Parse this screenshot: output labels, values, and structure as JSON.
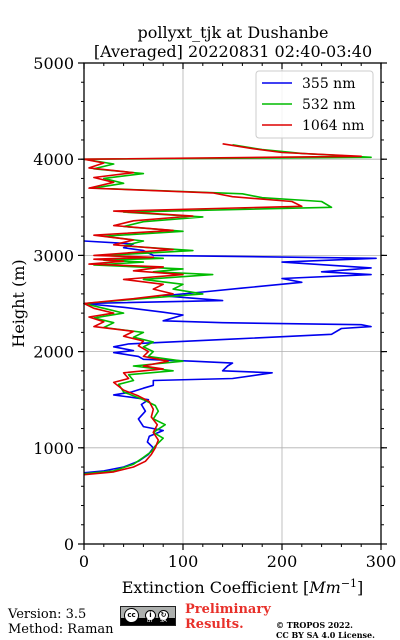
{
  "chart_data": {
    "type": "line",
    "title": "pollyxt_tjk at Dushanbe",
    "subtitle": "[Averaged] 20220831 02:40-03:40",
    "xlabel": "Extinction Coefficient",
    "xlabel_unit": "[Mm^-1]",
    "ylabel": "Height (m)",
    "xlim": [
      0,
      300
    ],
    "ylim": [
      0,
      5000
    ],
    "x_ticks": [
      "0",
      "100",
      "200",
      "300"
    ],
    "y_ticks": [
      "0",
      "1000",
      "2000",
      "3000",
      "4000",
      "5000"
    ],
    "grid": true,
    "legend_position": "top-right",
    "series": [
      {
        "name": "355 nm",
        "color": "#0000ee",
        "points": [
          [
            0,
            740
          ],
          [
            20,
            760
          ],
          [
            40,
            800
          ],
          [
            55,
            860
          ],
          [
            65,
            930
          ],
          [
            70,
            1000
          ],
          [
            64,
            1060
          ],
          [
            66,
            1120
          ],
          [
            80,
            1180
          ],
          [
            60,
            1220
          ],
          [
            55,
            1300
          ],
          [
            62,
            1380
          ],
          [
            58,
            1450
          ],
          [
            65,
            1500
          ],
          [
            30,
            1550
          ],
          [
            48,
            1580
          ],
          [
            60,
            1620
          ],
          [
            70,
            1650
          ],
          [
            70,
            1700
          ],
          [
            150,
            1720
          ],
          [
            190,
            1780
          ],
          [
            140,
            1800
          ],
          [
            145,
            1850
          ],
          [
            150,
            1880
          ],
          [
            110,
            1900
          ],
          [
            60,
            1920
          ],
          [
            55,
            1950
          ],
          [
            30,
            1990
          ],
          [
            50,
            2010
          ],
          [
            30,
            2050
          ],
          [
            45,
            2080
          ],
          [
            150,
            2130
          ],
          [
            250,
            2180
          ],
          [
            260,
            2240
          ],
          [
            290,
            2260
          ],
          [
            280,
            2280
          ],
          [
            140,
            2300
          ],
          [
            80,
            2320
          ],
          [
            100,
            2380
          ],
          [
            80,
            2410
          ],
          [
            40,
            2460
          ],
          [
            0,
            2500
          ],
          [
            140,
            2530
          ],
          [
            80,
            2580
          ],
          [
            120,
            2620
          ],
          [
            160,
            2660
          ],
          [
            220,
            2720
          ],
          [
            200,
            2760
          ],
          [
            290,
            2800
          ],
          [
            240,
            2830
          ],
          [
            290,
            2870
          ],
          [
            200,
            2930
          ],
          [
            295,
            2970
          ],
          [
            70,
            3000
          ],
          [
            60,
            3050
          ],
          [
            40,
            3080
          ],
          [
            50,
            3120
          ],
          [
            0,
            3150
          ]
        ]
      },
      {
        "name": "532 nm",
        "color": "#00bb00",
        "points": [
          [
            0,
            730
          ],
          [
            30,
            760
          ],
          [
            50,
            830
          ],
          [
            60,
            900
          ],
          [
            68,
            960
          ],
          [
            72,
            1020
          ],
          [
            80,
            1100
          ],
          [
            70,
            1160
          ],
          [
            82,
            1240
          ],
          [
            70,
            1300
          ],
          [
            75,
            1380
          ],
          [
            72,
            1440
          ],
          [
            60,
            1500
          ],
          [
            40,
            1580
          ],
          [
            35,
            1660
          ],
          [
            50,
            1700
          ],
          [
            45,
            1760
          ],
          [
            90,
            1800
          ],
          [
            50,
            1850
          ],
          [
            100,
            1900
          ],
          [
            65,
            1950
          ],
          [
            70,
            2000
          ],
          [
            60,
            2050
          ],
          [
            70,
            2100
          ],
          [
            50,
            2150
          ],
          [
            60,
            2200
          ],
          [
            20,
            2250
          ],
          [
            30,
            2300
          ],
          [
            10,
            2350
          ],
          [
            40,
            2400
          ],
          [
            20,
            2450
          ],
          [
            0,
            2500
          ],
          [
            70,
            2560
          ],
          [
            120,
            2600
          ],
          [
            90,
            2650
          ],
          [
            100,
            2700
          ],
          [
            60,
            2750
          ],
          [
            130,
            2800
          ],
          [
            70,
            2830
          ],
          [
            100,
            2860
          ],
          [
            10,
            2900
          ],
          [
            60,
            2930
          ],
          [
            20,
            2950
          ],
          [
            80,
            2970
          ],
          [
            20,
            3000
          ],
          [
            110,
            3050
          ],
          [
            40,
            3100
          ],
          [
            60,
            3150
          ],
          [
            20,
            3200
          ],
          [
            100,
            3250
          ],
          [
            40,
            3300
          ],
          [
            60,
            3350
          ],
          [
            120,
            3400
          ],
          [
            40,
            3450
          ],
          [
            250,
            3500
          ],
          [
            240,
            3560
          ],
          [
            180,
            3600
          ],
          [
            160,
            3640
          ],
          [
            10,
            3700
          ],
          [
            40,
            3750
          ],
          [
            20,
            3800
          ],
          [
            60,
            3850
          ],
          [
            10,
            3900
          ],
          [
            30,
            3950
          ],
          [
            0,
            4000
          ],
          [
            290,
            4020
          ],
          [
            220,
            4060
          ],
          [
            180,
            4100
          ],
          [
            150,
            4150
          ]
        ]
      },
      {
        "name": "1064 nm",
        "color": "#dd0000",
        "points": [
          [
            0,
            720
          ],
          [
            30,
            750
          ],
          [
            50,
            800
          ],
          [
            62,
            860
          ],
          [
            68,
            930
          ],
          [
            72,
            1000
          ],
          [
            75,
            1080
          ],
          [
            70,
            1160
          ],
          [
            74,
            1240
          ],
          [
            68,
            1320
          ],
          [
            70,
            1400
          ],
          [
            66,
            1480
          ],
          [
            55,
            1540
          ],
          [
            40,
            1600
          ],
          [
            30,
            1680
          ],
          [
            45,
            1720
          ],
          [
            40,
            1780
          ],
          [
            80,
            1820
          ],
          [
            60,
            1850
          ],
          [
            85,
            1900
          ],
          [
            60,
            1950
          ],
          [
            65,
            2000
          ],
          [
            55,
            2060
          ],
          [
            60,
            2110
          ],
          [
            40,
            2160
          ],
          [
            50,
            2210
          ],
          [
            10,
            2260
          ],
          [
            20,
            2310
          ],
          [
            5,
            2360
          ],
          [
            30,
            2400
          ],
          [
            10,
            2450
          ],
          [
            0,
            2500
          ],
          [
            50,
            2550
          ],
          [
            90,
            2600
          ],
          [
            70,
            2650
          ],
          [
            80,
            2700
          ],
          [
            40,
            2750
          ],
          [
            100,
            2800
          ],
          [
            50,
            2840
          ],
          [
            80,
            2880
          ],
          [
            5,
            2910
          ],
          [
            40,
            2940
          ],
          [
            10,
            2960
          ],
          [
            70,
            2980
          ],
          [
            10,
            3000
          ],
          [
            90,
            3060
          ],
          [
            30,
            3110
          ],
          [
            50,
            3160
          ],
          [
            10,
            3210
          ],
          [
            90,
            3260
          ],
          [
            30,
            3310
          ],
          [
            50,
            3360
          ],
          [
            110,
            3410
          ],
          [
            30,
            3460
          ],
          [
            220,
            3510
          ],
          [
            210,
            3560
          ],
          [
            150,
            3610
          ],
          [
            130,
            3650
          ],
          [
            5,
            3700
          ],
          [
            30,
            3760
          ],
          [
            10,
            3810
          ],
          [
            50,
            3860
          ],
          [
            5,
            3910
          ],
          [
            20,
            3960
          ],
          [
            0,
            4000
          ],
          [
            280,
            4030
          ],
          [
            200,
            4070
          ],
          [
            170,
            4110
          ],
          [
            140,
            4160
          ]
        ]
      }
    ]
  },
  "footer": {
    "version": "Version: 3.5",
    "method": "Method: Raman",
    "preliminary": "Preliminary Results.",
    "copyright": "© TROPOS 2022.",
    "license": "CC BY SA 4.0 License."
  },
  "badge": {
    "cc": "cc",
    "by": "BY",
    "sa": "SA"
  }
}
